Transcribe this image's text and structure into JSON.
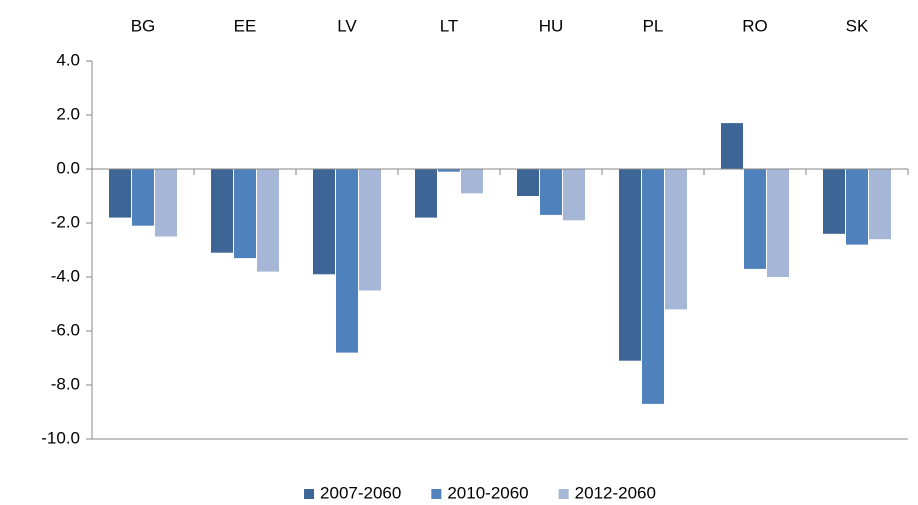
{
  "chart_data": {
    "type": "bar",
    "categories": [
      "BG",
      "EE",
      "LV",
      "LT",
      "HU",
      "PL",
      "RO",
      "SK"
    ],
    "series": [
      {
        "name": "2007-2060",
        "color": "#3d6596",
        "values": [
          -1.8,
          -3.1,
          -3.9,
          -1.8,
          -1.0,
          -7.1,
          1.7,
          -2.4
        ]
      },
      {
        "name": "2010-2060",
        "color": "#4f81bd",
        "values": [
          -2.1,
          -3.3,
          -6.8,
          -0.1,
          -1.7,
          -8.7,
          -3.7,
          -2.8
        ]
      },
      {
        "name": "2012-2060",
        "color": "#a5b6d6",
        "values": [
          -2.5,
          -3.8,
          -4.5,
          -0.9,
          -1.9,
          -5.2,
          -4.0,
          -2.6
        ]
      }
    ],
    "ylim": [
      -10,
      4
    ],
    "yticks": [
      {
        "value": 4,
        "label": "4.0"
      },
      {
        "value": 2,
        "label": "2.0"
      },
      {
        "value": 0,
        "label": "0.0"
      },
      {
        "value": -2,
        "label": "-2.0"
      },
      {
        "value": -4,
        "label": "-4.0"
      },
      {
        "value": -6,
        "label": "-6.0"
      },
      {
        "value": -8,
        "label": "-8.0"
      },
      {
        "value": -10,
        "label": "-10.0"
      }
    ],
    "legend": "bottom"
  }
}
